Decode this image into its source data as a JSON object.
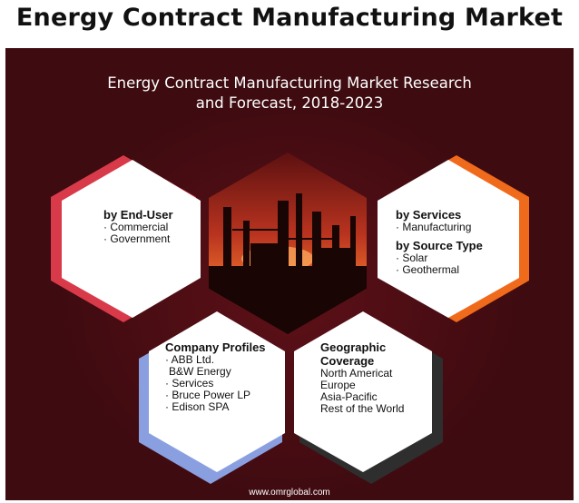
{
  "header": {
    "title": "Energy Contract Manufacturing Market"
  },
  "panel": {
    "subtitle_line1": "Energy Contract Manufacturing Market Research",
    "subtitle_line2": "and Forecast, 2018-2023",
    "footer_url": "www.omrglobal.com"
  },
  "segments": {
    "end_user": {
      "heading": "by End-User",
      "items": [
        "· Commercial",
        "· Government"
      ],
      "accent": "#d83a4a"
    },
    "services": {
      "heading": "by Services",
      "items": [
        "· Manufacturing"
      ],
      "heading2": "by Source Type",
      "items2": [
        "· Solar",
        "· Geothermal"
      ],
      "accent": "#f06a1c"
    },
    "company": {
      "heading": "Company Profiles",
      "items": [
        "· ABB Ltd.",
        "  B&W Energy",
        "· Services",
        "· Bruce Power LP",
        "· Edison SPA"
      ],
      "accent": "#8a9fe0"
    },
    "geo": {
      "heading": "Geographic",
      "heading_line2": "Coverage",
      "items": [
        "North Americat",
        "Europe",
        "Asia-Pacific",
        "Rest of the World"
      ],
      "accent": "#2e2e2e"
    }
  },
  "icons": {
    "center_image": "industrial-plant-silhouette"
  }
}
